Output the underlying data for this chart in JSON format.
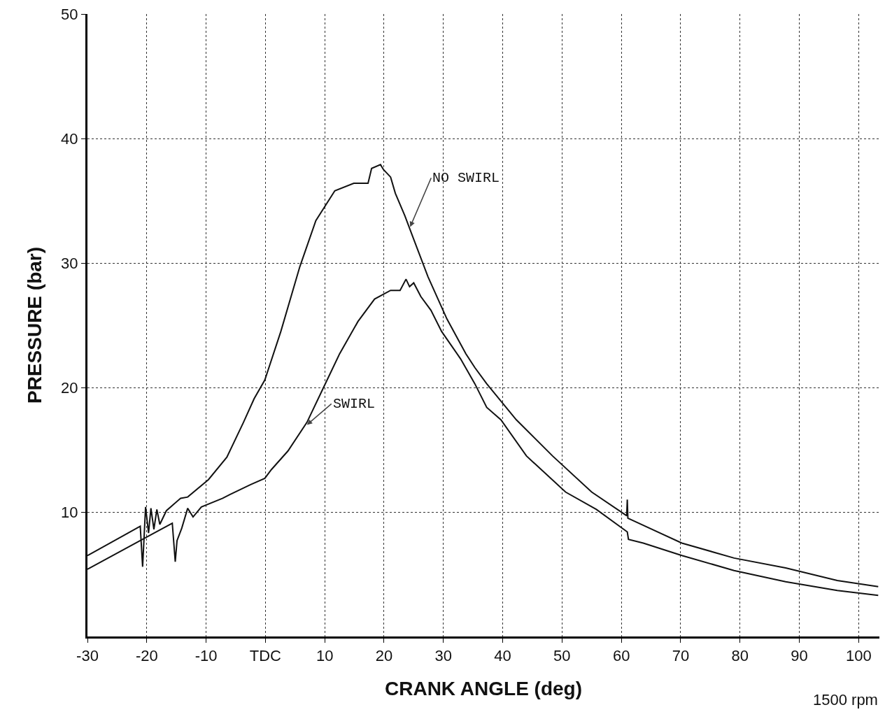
{
  "chart_data": {
    "type": "line",
    "xlabel": "CRANK ANGLE (deg)",
    "ylabel": "PRESSURE (bar)",
    "xlim": [
      -30,
      103.5
    ],
    "ylim": [
      0,
      50
    ],
    "xticks": [
      -30,
      -20,
      -10,
      {
        "value": 0,
        "label": "TDC"
      },
      10,
      20,
      30,
      40,
      50,
      60,
      70,
      80,
      90,
      100
    ],
    "yticks": [
      10,
      20,
      30,
      40,
      50
    ],
    "grid": true,
    "marker": "none",
    "line_style": "solid",
    "series": [
      {
        "color": "#111111",
        "x": [
          -30,
          -21.1,
          -20.7,
          -20.2,
          -19.7,
          -19.3,
          -18.8,
          -18.3,
          -17.8,
          -16.7,
          -14.3,
          -13.1,
          -9.6,
          -6.5,
          -3.7,
          -1.9,
          -0.1,
          2.6,
          5.8,
          8.5,
          11.7,
          14.9,
          17.3,
          17.9,
          19.4,
          19.9,
          21.1,
          21.9,
          23.5,
          25.0,
          27.4,
          30.6,
          33.8,
          35.3,
          37.3,
          42.3,
          48.4,
          55.0,
          60.9,
          61.0,
          61.1,
          70.2,
          79.0,
          87.7,
          96.4,
          103.3
        ],
        "values": [
          6.5,
          8.85,
          5.6,
          10.4,
          8.3,
          10.3,
          8.6,
          10.2,
          9.0,
          10.1,
          11.1,
          11.2,
          12.6,
          14.4,
          17.2,
          19.1,
          20.6,
          24.5,
          29.7,
          33.4,
          35.8,
          36.4,
          36.4,
          37.6,
          37.9,
          37.5,
          36.9,
          35.6,
          33.8,
          31.9,
          28.9,
          25.5,
          22.7,
          21.6,
          20.3,
          17.4,
          14.5,
          11.6,
          9.7,
          11.0,
          9.5,
          7.5,
          6.3,
          5.5,
          4.5,
          4.0
        ]
      },
      {
        "color": "#111111",
        "x": [
          -30,
          -15.7,
          -15.2,
          -14.9,
          -14.1,
          -13.1,
          -12.2,
          -10.8,
          -7.2,
          -6.0,
          -2.5,
          -0.1,
          1.0,
          3.8,
          7.0,
          9.7,
          12.5,
          15.6,
          18.4,
          21.1,
          22.7,
          23.7,
          24.3,
          25.0,
          26.2,
          27.9,
          29.7,
          32.9,
          35.3,
          37.3,
          39.7,
          44.0,
          50.6,
          55.8,
          61.0,
          61.2,
          63.7,
          70.2,
          79.0,
          87.7,
          96.4,
          103.3
        ],
        "values": [
          5.4,
          9.1,
          6.0,
          7.7,
          8.7,
          10.3,
          9.6,
          10.4,
          11.1,
          11.4,
          12.2,
          12.7,
          13.4,
          14.9,
          17.2,
          19.9,
          22.7,
          25.3,
          27.1,
          27.8,
          27.8,
          28.7,
          28.1,
          28.4,
          27.3,
          26.2,
          24.5,
          22.3,
          20.3,
          18.4,
          17.4,
          14.5,
          11.6,
          10.2,
          8.4,
          7.8,
          7.5,
          6.5,
          5.3,
          4.4,
          3.7,
          3.3
        ]
      }
    ],
    "annotations": [
      {
        "text": "NO SWIRL",
        "x": 24.4,
        "y": 32.9
      },
      {
        "text": "SWIRL",
        "x": 7.0,
        "y": 17.0
      },
      "1500 rpm"
    ]
  }
}
